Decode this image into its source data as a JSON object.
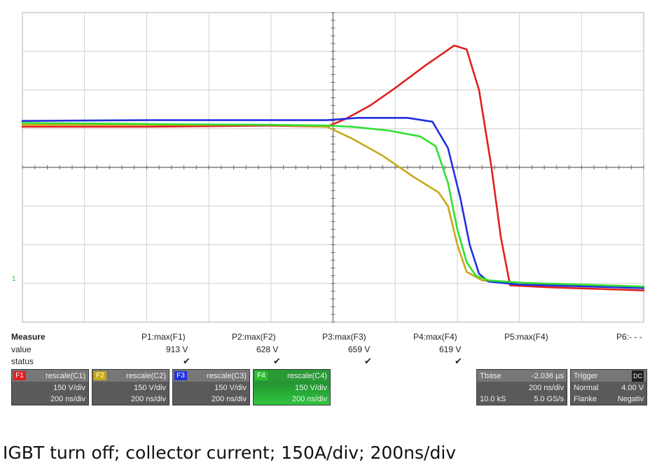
{
  "chart_data": {
    "type": "line",
    "title": "",
    "xlabel": "",
    "ylabel": "",
    "xlim": [
      0,
      10
    ],
    "ylim": [
      -4,
      4
    ],
    "grid": true,
    "x_unit": "div",
    "y_unit": "div",
    "series": [
      {
        "color": "#e02020",
        "points": [
          [
            0,
            1.05
          ],
          [
            2,
            1.05
          ],
          [
            4,
            1.08
          ],
          [
            4.9,
            1.05
          ],
          [
            5.2,
            1.25
          ],
          [
            5.6,
            1.6
          ],
          [
            6.0,
            2.05
          ],
          [
            6.5,
            2.65
          ],
          [
            6.95,
            3.15
          ],
          [
            7.15,
            3.05
          ],
          [
            7.35,
            2.0
          ],
          [
            7.55,
            0.0
          ],
          [
            7.7,
            -1.8
          ],
          [
            7.85,
            -3.05
          ],
          [
            8.5,
            -3.1
          ],
          [
            10,
            -3.18
          ]
        ]
      },
      {
        "color": "#c8a818",
        "points": [
          [
            0,
            1.1
          ],
          [
            2,
            1.1
          ],
          [
            4,
            1.1
          ],
          [
            4.9,
            1.05
          ],
          [
            5.3,
            0.75
          ],
          [
            5.8,
            0.3
          ],
          [
            6.3,
            -0.25
          ],
          [
            6.7,
            -0.65
          ],
          [
            6.85,
            -1.0
          ],
          [
            7.0,
            -2.0
          ],
          [
            7.15,
            -2.7
          ],
          [
            7.4,
            -2.92
          ],
          [
            8,
            -3.0
          ],
          [
            10,
            -3.1
          ]
        ]
      },
      {
        "color": "#2030e0",
        "points": [
          [
            0,
            1.2
          ],
          [
            2,
            1.22
          ],
          [
            4,
            1.22
          ],
          [
            4.9,
            1.22
          ],
          [
            5.4,
            1.28
          ],
          [
            6.2,
            1.28
          ],
          [
            6.6,
            1.18
          ],
          [
            6.85,
            0.5
          ],
          [
            7.05,
            -0.8
          ],
          [
            7.2,
            -2.0
          ],
          [
            7.35,
            -2.75
          ],
          [
            7.5,
            -2.95
          ],
          [
            8,
            -3.03
          ],
          [
            10,
            -3.12
          ]
        ]
      },
      {
        "color": "#30e030",
        "points": [
          [
            0,
            1.15
          ],
          [
            2,
            1.12
          ],
          [
            4,
            1.1
          ],
          [
            4.9,
            1.08
          ],
          [
            5.3,
            1.05
          ],
          [
            5.9,
            0.95
          ],
          [
            6.4,
            0.8
          ],
          [
            6.65,
            0.55
          ],
          [
            6.85,
            -0.4
          ],
          [
            7.0,
            -1.6
          ],
          [
            7.15,
            -2.45
          ],
          [
            7.3,
            -2.8
          ],
          [
            7.5,
            -2.92
          ],
          [
            8,
            -2.98
          ],
          [
            10,
            -3.08
          ]
        ]
      }
    ]
  },
  "measure": {
    "header": "Measure",
    "value_label": "value",
    "status_label": "status",
    "params": [
      {
        "name": "P1:max(F1)",
        "value": "913 V",
        "status": "✔"
      },
      {
        "name": "P2:max(F2)",
        "value": "628 V",
        "status": "✔"
      },
      {
        "name": "P3:max(F3)",
        "value": "659 V",
        "status": "✔"
      },
      {
        "name": "P4:max(F4)",
        "value": "619 V",
        "status": "✔"
      },
      {
        "name": "P5:max(F4)",
        "value": "",
        "status": ""
      },
      {
        "name": "P6:- - -",
        "value": "",
        "status": ""
      }
    ]
  },
  "channels": [
    {
      "tag": "F1",
      "tag_color": "#e02020",
      "func": "rescale(C1)",
      "vdiv": "150 V/div",
      "tdiv": "200 ns/div"
    },
    {
      "tag": "F2",
      "tag_color": "#c8a818",
      "func": "rescale(C2)",
      "vdiv": "150 V/div",
      "tdiv": "200 ns/div"
    },
    {
      "tag": "F3",
      "tag_color": "#2030e0",
      "func": "rescale(C3)",
      "vdiv": "150 V/div",
      "tdiv": "200 ns/div"
    },
    {
      "tag": "F4",
      "tag_color": "#30c030",
      "func": "rescale(C4)",
      "vdiv": "150 V/div",
      "tdiv": "200 ns/div"
    }
  ],
  "timebase": {
    "label": "Tbase",
    "offset": "-2.036 µs",
    "tdiv": "200 ns/div",
    "samples": "10.0 kS",
    "rate": "5.0 GS/s"
  },
  "trigger": {
    "label": "Trigger",
    "mode": "Normal",
    "level": "4.00 V",
    "slope_label": "Flanke",
    "slope": "Negativ",
    "coupling": "DC"
  },
  "ground_marker": "1",
  "caption": "IGBT turn off; collector current; 150A/div; 200ns/div"
}
